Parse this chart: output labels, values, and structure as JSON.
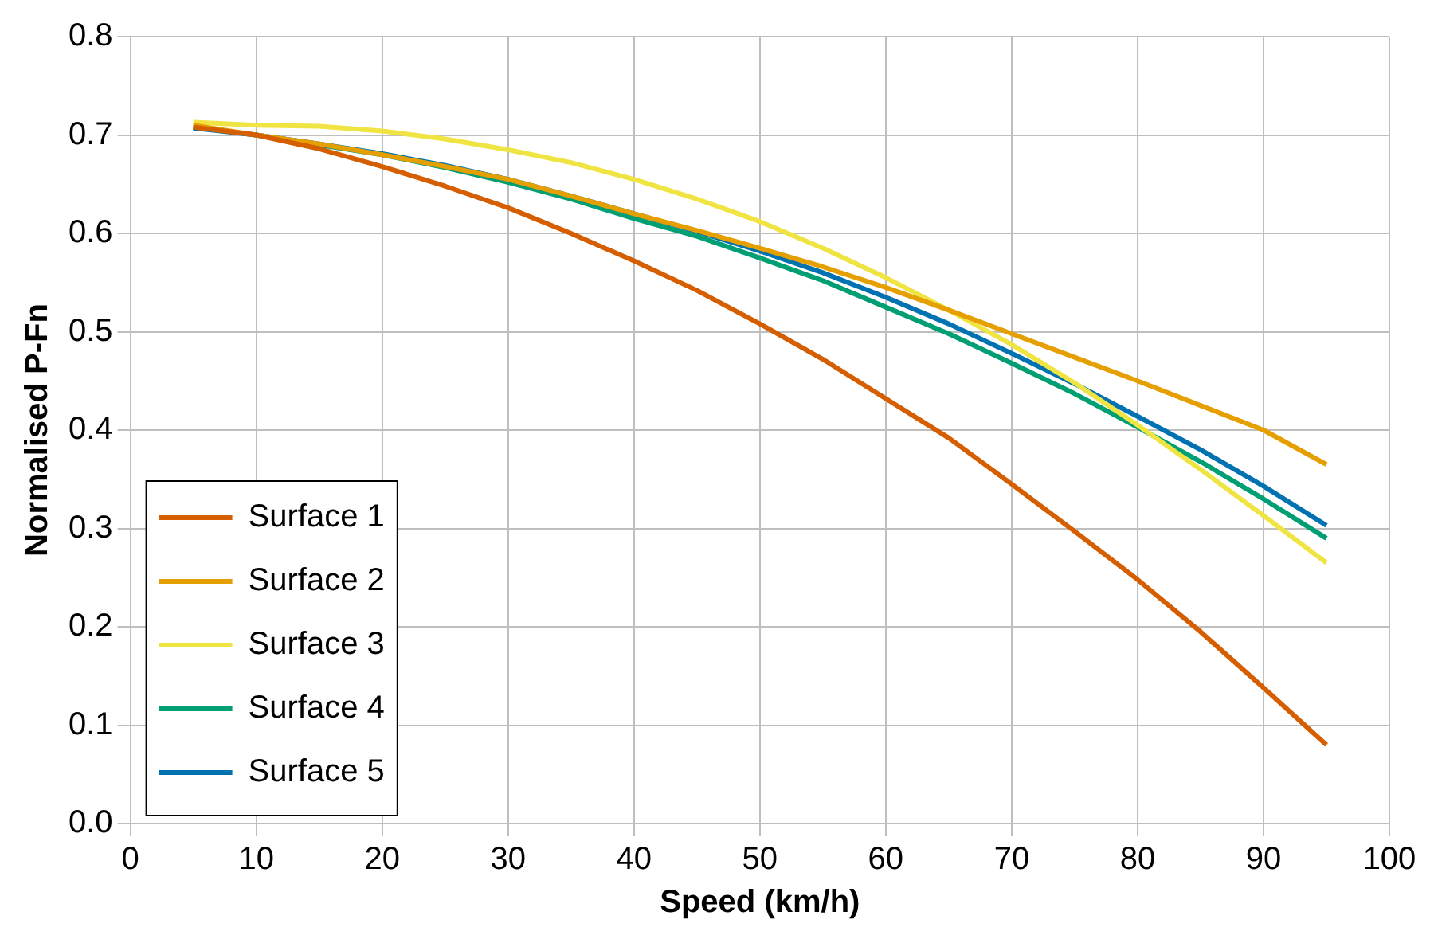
{
  "chart_data": {
    "type": "line",
    "xlabel": "Speed (km/h)",
    "ylabel": "Normalised P-Fn",
    "x": [
      5,
      10,
      15,
      20,
      25,
      30,
      35,
      40,
      45,
      50,
      55,
      60,
      65,
      70,
      75,
      80,
      85,
      90,
      95
    ],
    "series": [
      {
        "name": "Surface 1",
        "color": "#d55e00",
        "values": [
          0.708,
          0.7,
          0.686,
          0.668,
          0.648,
          0.626,
          0.6,
          0.572,
          0.542,
          0.508,
          0.472,
          0.432,
          0.392,
          0.345,
          0.297,
          0.248,
          0.195,
          0.138,
          0.08
        ]
      },
      {
        "name": "Surface 2",
        "color": "#e69f00",
        "values": [
          0.71,
          0.7,
          0.691,
          0.68,
          0.668,
          0.655,
          0.638,
          0.62,
          0.603,
          0.585,
          0.566,
          0.545,
          0.522,
          0.498,
          0.474,
          0.45,
          0.425,
          0.4,
          0.365
        ]
      },
      {
        "name": "Surface 3",
        "color": "#f0e442",
        "values": [
          0.713,
          0.71,
          0.709,
          0.704,
          0.696,
          0.685,
          0.672,
          0.655,
          0.635,
          0.612,
          0.585,
          0.555,
          0.522,
          0.487,
          0.448,
          0.405,
          0.36,
          0.313,
          0.265
        ]
      },
      {
        "name": "Surface 4",
        "color": "#009e73",
        "values": [
          0.708,
          0.7,
          0.69,
          0.68,
          0.667,
          0.652,
          0.635,
          0.615,
          0.597,
          0.575,
          0.552,
          0.525,
          0.498,
          0.468,
          0.437,
          0.403,
          0.368,
          0.33,
          0.29
        ]
      },
      {
        "name": "Surface 5",
        "color": "#0072b2",
        "values": [
          0.707,
          0.7,
          0.691,
          0.681,
          0.669,
          0.655,
          0.638,
          0.62,
          0.602,
          0.582,
          0.56,
          0.535,
          0.508,
          0.478,
          0.447,
          0.414,
          0.38,
          0.343,
          0.303
        ]
      }
    ],
    "xlim": [
      0,
      100
    ],
    "xticks": [
      0,
      10,
      20,
      30,
      40,
      50,
      60,
      70,
      80,
      90,
      100
    ],
    "ylim": [
      0,
      0.8
    ],
    "yticks": [
      {
        "value": 0,
        "label": "0.0"
      },
      0.1,
      0.2,
      0.3,
      0.4,
      0.5,
      0.6,
      0.7,
      0.8
    ],
    "grid": true,
    "legend": "bottom left",
    "marker": "none",
    "line_style": "solid"
  }
}
